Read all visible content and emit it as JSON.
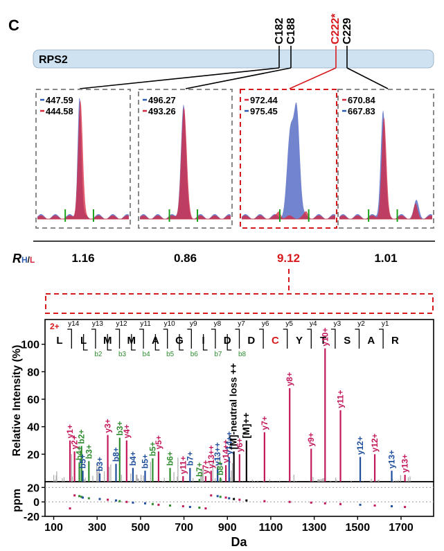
{
  "panel_letter": "C",
  "protein": {
    "name": "RPS2",
    "sites": [
      {
        "label": "C182",
        "color": "#000000"
      },
      {
        "label": "C188",
        "color": "#000000"
      },
      {
        "label": "C222*",
        "color": "#d7191c"
      },
      {
        "label": "C229",
        "color": "#000000"
      }
    ]
  },
  "colors": {
    "heavy": "#2a5db0",
    "light": "#d7263d",
    "highlight": "#d7191c",
    "b_ion": "#2e8b2e",
    "y_ion": "#c2185b",
    "other_ion": "#1f4e9c",
    "neutral": "#000000"
  },
  "ratio_label": {
    "prefix": "R",
    "h": "H",
    "slash": "/",
    "l": "L"
  },
  "chromatograms": [
    {
      "masses": [
        {
          "value": "447.59",
          "color": "#2a5db0"
        },
        {
          "value": "444.58",
          "color": "#d7263d"
        }
      ],
      "ratio": "1.16",
      "highlight": false
    },
    {
      "masses": [
        {
          "value": "496.27",
          "color": "#2a5db0"
        },
        {
          "value": "493.26",
          "color": "#d7263d"
        }
      ],
      "ratio": "0.86",
      "highlight": false
    },
    {
      "masses": [
        {
          "value": "972.44",
          "color": "#d7263d"
        },
        {
          "value": "975.45",
          "color": "#2a5db0"
        }
      ],
      "ratio": "9.12",
      "highlight": true
    },
    {
      "masses": [
        {
          "value": "670.84",
          "color": "#d7263d"
        },
        {
          "value": "667.83",
          "color": "#2a5db0"
        }
      ],
      "ratio": "1.01",
      "highlight": false
    }
  ],
  "chart_data": {
    "type": "bar",
    "charge_label": "2+",
    "peptide": [
      "L",
      "L",
      "M",
      "M",
      "A",
      "G",
      "I",
      "D",
      "D",
      "C",
      "Y",
      "T",
      "S",
      "A",
      "R"
    ],
    "modified_residue_index": 9,
    "y_ions": [
      "y14",
      "y13",
      "y12",
      "y11",
      "y10",
      "y9",
      "y8",
      "y7",
      "y6",
      "y5",
      "y4",
      "y3",
      "y2",
      "y1"
    ],
    "b_ions": [
      "b2",
      "b3",
      "b4",
      "b5",
      "b6",
      "b7",
      "b8"
    ],
    "xlabel": "Da",
    "ylabel": "Relative Intensity (%)",
    "xlim": [
      60,
      1850
    ],
    "ylim": [
      0,
      118
    ],
    "x_ticks": [
      100,
      300,
      500,
      700,
      900,
      1100,
      1300,
      1500,
      1700
    ],
    "y_ticks": [
      20,
      40,
      60,
      80,
      100
    ],
    "ppm_axis": {
      "label": "ppm",
      "ylim": [
        -20,
        28
      ],
      "ticks": [
        20,
        0,
        -20
      ]
    },
    "peaks": [
      {
        "label": "y1+",
        "mz": 175,
        "intensity": 30,
        "ion": "y"
      },
      {
        "label": "y2+",
        "mz": 196,
        "intensity": 22,
        "ion": "y"
      },
      {
        "label": "b4+",
        "mz": 218,
        "intensity": 14,
        "ion": "b"
      },
      {
        "label": "b2+",
        "mz": 228,
        "intensity": 26,
        "ion": "b"
      },
      {
        "label": "b5+",
        "mz": 234,
        "intensity": 8,
        "ion": "other"
      },
      {
        "label": "b3+",
        "mz": 262,
        "intensity": 15,
        "ion": "b"
      },
      {
        "label": "b3+",
        "mz": 312,
        "intensity": 6,
        "ion": "other"
      },
      {
        "label": "y3+",
        "mz": 349,
        "intensity": 34,
        "ion": "y"
      },
      {
        "label": "b8+",
        "mz": 387,
        "intensity": 13,
        "ion": "other"
      },
      {
        "label": "b3+",
        "mz": 404,
        "intensity": 32,
        "ion": "b"
      },
      {
        "label": "y4+",
        "mz": 436,
        "intensity": 30,
        "ion": "y"
      },
      {
        "label": "b4+",
        "mz": 465,
        "intensity": 10,
        "ion": "other"
      },
      {
        "label": "b5+",
        "mz": 521,
        "intensity": 8,
        "ion": "other"
      },
      {
        "label": "b5+",
        "mz": 556,
        "intensity": 17,
        "ion": "b"
      },
      {
        "label": "y5+",
        "mz": 583,
        "intensity": 22,
        "ion": "y"
      },
      {
        "label": "b6+",
        "mz": 636,
        "intensity": 10,
        "ion": "b"
      },
      {
        "label": "y11+",
        "mz": 696,
        "intensity": 4,
        "ion": "y"
      },
      {
        "label": "b7+",
        "mz": 728,
        "intensity": 10,
        "ion": "other"
      },
      {
        "label": "b7+",
        "mz": 771,
        "intensity": 2,
        "ion": "b"
      },
      {
        "label": "y7+",
        "mz": 800,
        "intensity": 4,
        "ion": "y"
      },
      {
        "label": "y13++",
        "mz": 825,
        "intensity": 8,
        "ion": "y"
      },
      {
        "label": "y13++",
        "mz": 855,
        "intensity": 10,
        "ion": "other"
      },
      {
        "label": "b8+",
        "mz": 868,
        "intensity": 3,
        "ion": "b"
      },
      {
        "label": "y14++",
        "mz": 893,
        "intensity": 12,
        "ion": "y"
      },
      {
        "label": "y14++",
        "mz": 908,
        "intensity": 18,
        "ion": "other"
      },
      {
        "label": "[M]-neutral loss ++",
        "mz": 930,
        "intensity": 22,
        "ion": "neutral"
      },
      {
        "label": "y6+",
        "mz": 956,
        "intensity": 20,
        "ion": "y"
      },
      {
        "label": "[M]++",
        "mz": 988,
        "intensity": 30,
        "ion": "neutral"
      },
      {
        "label": "y7+",
        "mz": 1071,
        "intensity": 36,
        "ion": "y"
      },
      {
        "label": "y8+",
        "mz": 1187,
        "intensity": 68,
        "ion": "y"
      },
      {
        "label": "y9+",
        "mz": 1286,
        "intensity": 24,
        "ion": "y"
      },
      {
        "label": "y10+",
        "mz": 1350,
        "intensity": 97,
        "ion": "y"
      },
      {
        "label": "y11+",
        "mz": 1421,
        "intensity": 52,
        "ion": "y"
      },
      {
        "label": "y12+",
        "mz": 1512,
        "intensity": 18,
        "ion": "other"
      },
      {
        "label": "y12+",
        "mz": 1579,
        "intensity": 20,
        "ion": "y"
      },
      {
        "label": "y13+",
        "mz": 1657,
        "intensity": 8,
        "ion": "other"
      },
      {
        "label": "y13+",
        "mz": 1718,
        "intensity": 5,
        "ion": "y"
      }
    ]
  }
}
